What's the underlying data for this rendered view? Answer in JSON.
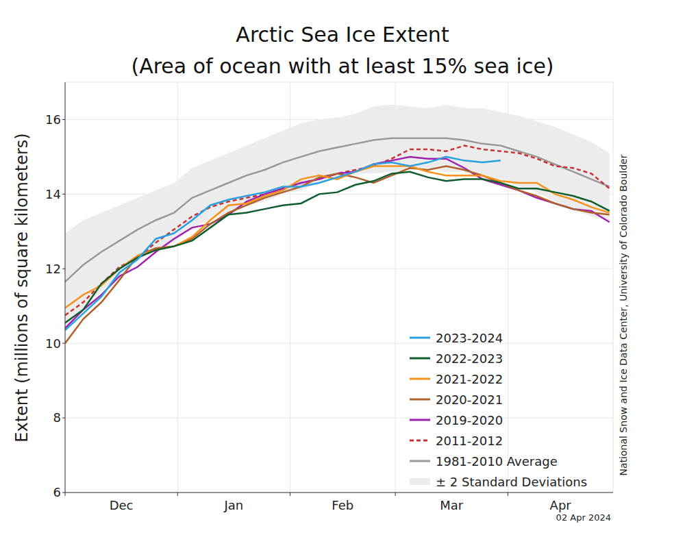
{
  "chart_data": {
    "type": "line",
    "title": "Arctic Sea Ice Extent",
    "subtitle": "(Area of ocean with at least 15% sea ice)",
    "y_label": "Extent (millions of square kilometers)",
    "credit": "National Snow and Ice Data Center, University of Colorado Boulder",
    "date": "02 Apr 2024",
    "x": [
      0,
      5,
      10,
      15,
      20,
      25,
      30,
      35,
      40,
      45,
      50,
      55,
      60,
      65,
      70,
      75,
      80,
      85,
      90,
      95,
      100,
      105,
      110,
      115,
      120,
      125,
      130,
      135,
      140,
      145,
      150
    ],
    "xlim": [
      0,
      151
    ],
    "xticks": [
      {
        "value": 0,
        "label": "Dec"
      },
      {
        "value": 31,
        "label": "Jan"
      },
      {
        "value": 62,
        "label": "Feb"
      },
      {
        "value": 91,
        "label": "Mar"
      },
      {
        "value": 122,
        "label": "Apr"
      }
    ],
    "ylim": [
      6,
      17
    ],
    "yticks": [
      6,
      8,
      10,
      12,
      14,
      16
    ],
    "grid": true,
    "legend": "lower right",
    "series": [
      {
        "name": "2023-2024",
        "color": "#2aa0e0",
        "values": [
          10.35,
          10.8,
          11.25,
          11.9,
          12.25,
          12.8,
          12.95,
          13.3,
          13.7,
          13.85,
          13.95,
          14.05,
          14.2,
          14.2,
          14.3,
          14.45,
          14.6,
          14.8,
          14.85,
          14.75,
          14.85,
          15.0,
          14.9,
          14.85,
          14.9,
          null,
          null,
          null,
          null,
          null,
          null
        ]
      },
      {
        "name": "2022-2023",
        "color": "#0f5c2e",
        "values": [
          10.55,
          10.9,
          11.6,
          12.0,
          12.3,
          12.5,
          12.6,
          12.75,
          13.1,
          13.45,
          13.5,
          13.6,
          13.7,
          13.75,
          14.0,
          14.05,
          14.25,
          14.35,
          14.55,
          14.6,
          14.45,
          14.35,
          14.4,
          14.4,
          14.3,
          14.15,
          14.15,
          14.05,
          13.95,
          13.8,
          13.55
        ]
      },
      {
        "name": "2021-2022",
        "color": "#f5921e",
        "values": [
          10.95,
          11.3,
          11.55,
          12.0,
          12.35,
          12.5,
          12.6,
          12.85,
          13.3,
          13.7,
          13.75,
          13.95,
          14.1,
          14.4,
          14.5,
          14.4,
          14.6,
          14.75,
          14.75,
          14.75,
          14.6,
          14.5,
          14.5,
          14.5,
          14.35,
          14.3,
          14.3,
          14.0,
          13.85,
          13.65,
          13.5
        ]
      },
      {
        "name": "2020-2021",
        "color": "#b0602a",
        "values": [
          10.0,
          10.65,
          11.1,
          11.7,
          12.35,
          12.55,
          12.6,
          12.8,
          13.2,
          13.5,
          13.7,
          13.9,
          14.05,
          14.2,
          14.45,
          14.55,
          14.45,
          14.3,
          14.5,
          14.7,
          14.65,
          14.75,
          14.65,
          14.5,
          14.3,
          14.1,
          13.95,
          13.75,
          13.6,
          13.5,
          13.45
        ]
      },
      {
        "name": "2019-2020",
        "color": "#a020b0",
        "values": [
          10.4,
          10.9,
          11.3,
          11.8,
          12.05,
          12.45,
          12.8,
          13.1,
          13.2,
          13.45,
          13.8,
          14.0,
          14.15,
          14.3,
          14.4,
          14.55,
          14.6,
          14.8,
          14.9,
          15.0,
          14.95,
          14.95,
          14.7,
          14.4,
          14.25,
          14.1,
          13.9,
          13.75,
          13.6,
          13.55,
          13.25
        ]
      },
      {
        "name": "2011-2012",
        "color": "#c83232",
        "line_style": "dashed",
        "values": [
          10.75,
          11.1,
          11.6,
          12.05,
          12.3,
          12.7,
          13.05,
          13.4,
          13.65,
          13.8,
          13.9,
          14.0,
          14.15,
          14.3,
          14.4,
          14.55,
          14.65,
          14.75,
          14.95,
          15.2,
          15.2,
          15.15,
          15.3,
          15.2,
          15.15,
          15.1,
          14.95,
          14.75,
          14.7,
          14.55,
          14.15
        ]
      },
      {
        "name": "1981-2010 Average",
        "color": "#999999",
        "values": [
          11.65,
          12.1,
          12.45,
          12.75,
          13.05,
          13.3,
          13.5,
          13.9,
          14.1,
          14.3,
          14.5,
          14.65,
          14.85,
          15.0,
          15.15,
          15.25,
          15.35,
          15.45,
          15.5,
          15.5,
          15.5,
          15.5,
          15.45,
          15.35,
          15.3,
          15.15,
          15.0,
          14.8,
          14.6,
          14.4,
          14.2
        ]
      },
      {
        "name": "± 2 Standard Deviations",
        "type": "area",
        "color": "#ececec",
        "lower": [
          10.35,
          10.9,
          11.4,
          11.8,
          12.2,
          12.5,
          12.7,
          13.1,
          13.3,
          13.5,
          13.7,
          13.8,
          14.0,
          14.1,
          14.3,
          14.45,
          14.55,
          14.55,
          14.6,
          14.65,
          14.7,
          14.6,
          14.6,
          14.4,
          14.4,
          14.2,
          14.05,
          13.8,
          13.6,
          13.4,
          13.3
        ],
        "upper": [
          12.95,
          13.3,
          13.5,
          13.7,
          13.9,
          14.1,
          14.3,
          14.7,
          14.9,
          15.1,
          15.3,
          15.5,
          15.7,
          15.9,
          16.0,
          16.05,
          16.15,
          16.35,
          16.4,
          16.35,
          16.3,
          16.4,
          16.3,
          16.3,
          16.2,
          16.1,
          15.95,
          15.8,
          15.6,
          15.4,
          15.1
        ]
      }
    ]
  }
}
